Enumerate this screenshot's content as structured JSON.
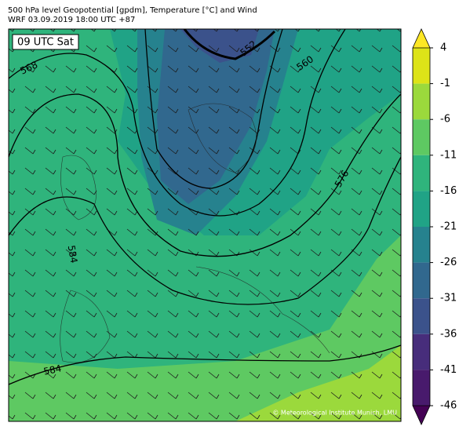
{
  "header": {
    "line1": "500 hPa level Geopotential [gpdm], Temperature [°C] and Wind",
    "line2": "WRF 03.09.2019 18:00 UTC +87"
  },
  "time_label": "09 UTC Sat",
  "contour_labels": [
    "568",
    "552",
    "560",
    "576",
    "584",
    "584"
  ],
  "credit": "© Meteorological Institute Munich, LMU",
  "colorbar": {
    "ticks": [
      4,
      -1,
      -6,
      -11,
      -16,
      -21,
      -26,
      -31,
      -36,
      -41,
      -46
    ],
    "colors": [
      "#dde318",
      "#9bd93c",
      "#5ec962",
      "#2fb47c",
      "#20a386",
      "#26828e",
      "#31688e",
      "#3b528b",
      "#472d7b",
      "#481a6c"
    ],
    "over_color": "#fde725",
    "under_color": "#440154"
  }
}
